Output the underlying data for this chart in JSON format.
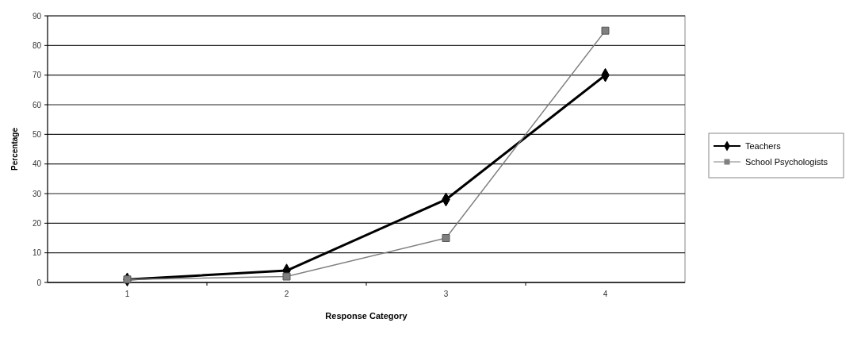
{
  "chart_data": {
    "type": "line",
    "xlabel": "Response Category",
    "ylabel": "Percentage",
    "categories": [
      "1",
      "2",
      "3",
      "4"
    ],
    "series": [
      {
        "name": "Teachers",
        "color": "#000000",
        "marker": "diamond",
        "values": [
          1,
          4,
          28,
          70
        ]
      },
      {
        "name": "School Psychologists",
        "color": "#808080",
        "marker": "square",
        "values": [
          1,
          2,
          15,
          85
        ]
      }
    ],
    "ylim": [
      0,
      90
    ],
    "yticks": [
      0,
      10,
      20,
      30,
      40,
      50,
      60,
      70,
      80,
      90
    ],
    "grid": "y",
    "legend": "right"
  }
}
